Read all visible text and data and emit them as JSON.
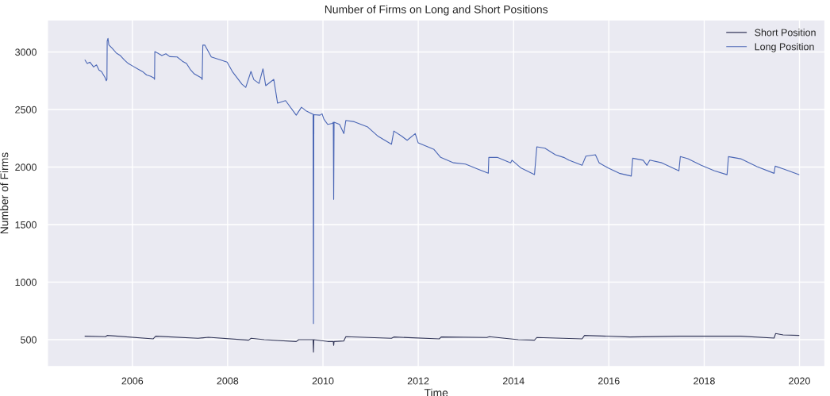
{
  "chart_data": {
    "type": "line",
    "title": "Number of Firms on Long and Short Positions",
    "xlabel": "Time",
    "ylabel": "Number of Firms",
    "xlim": [
      "2004-03-20",
      "2020-07-15"
    ],
    "xticks": [
      "2006",
      "2008",
      "2010",
      "2012",
      "2014",
      "2016",
      "2018",
      "2020"
    ],
    "ylim": [
      265,
      3280
    ],
    "yticks": [
      500,
      1000,
      1500,
      2000,
      2500,
      3000
    ],
    "grid": true,
    "legend": "top right",
    "series": [
      {
        "name": "Short Position",
        "color": "#34385a",
        "x": [
          "2005-01-03",
          "2005-06-10",
          "2005-06-22",
          "2006-06-10",
          "2006-06-29",
          "2007-05-19",
          "2007-08-07",
          "2008-06-10",
          "2008-06-29",
          "2008-10-08",
          "2009-06-10",
          "2009-06-29",
          "2009-10-17",
          "2009-10-20",
          "2009-10-23",
          "2010-02-06",
          "2010-03-21",
          "2010-03-24",
          "2010-03-27",
          "2010-06-10",
          "2010-06-25",
          "2011-06-10",
          "2011-06-28",
          "2012-06-10",
          "2012-06-25",
          "2013-06-10",
          "2013-06-29",
          "2014-02-06",
          "2014-06-10",
          "2014-06-28",
          "2015-06-10",
          "2015-06-29",
          "2016-06-10",
          "2017-06-29",
          "2018-10-08",
          "2019-06-21",
          "2019-07-02",
          "2019-08-29",
          "2019-12-28"
        ],
        "values": [
          530,
          526,
          537,
          507,
          530,
          512,
          521,
          496,
          512,
          500,
          484,
          500,
          500,
          392,
          500,
          484,
          484,
          450,
          484,
          489,
          526,
          512,
          523,
          507,
          523,
          519,
          526,
          500,
          496,
          519,
          507,
          537,
          523,
          530,
          530,
          514,
          553,
          541,
          537
        ]
      },
      {
        "name": "Long Position",
        "color": "#4a66b5",
        "x": [
          "2005-01-03",
          "2005-01-20",
          "2005-02-10",
          "2005-03-10",
          "2005-04-01",
          "2005-04-20",
          "2005-05-10",
          "2005-05-25",
          "2005-06-05",
          "2005-06-15",
          "2005-06-20",
          "2005-06-22",
          "2005-06-28",
          "2005-07-05",
          "2005-08-01",
          "2005-09-01",
          "2005-10-01",
          "2005-11-01",
          "2005-12-01",
          "2006-01-05",
          "2006-02-15",
          "2006-03-20",
          "2006-04-20",
          "2006-05-20",
          "2006-06-15",
          "2006-06-20",
          "2006-06-22",
          "2006-07-15",
          "2006-08-15",
          "2006-09-15",
          "2006-10-15",
          "2006-12-10",
          "2007-01-20",
          "2007-02-20",
          "2007-03-20",
          "2007-04-20",
          "2007-06-15",
          "2007-06-20",
          "2007-06-25",
          "2007-07-10",
          "2007-08-29",
          "2007-10-15",
          "2007-12-28",
          "2008-02-06",
          "2008-04-20",
          "2008-05-19",
          "2008-06-28",
          "2008-07-20",
          "2008-08-29",
          "2008-09-28",
          "2008-10-19",
          "2008-12-20",
          "2009-01-18",
          "2009-03-20",
          "2009-06-10",
          "2009-07-20",
          "2009-08-28",
          "2009-10-10",
          "2009-10-17",
          "2009-10-20",
          "2009-10-23",
          "2009-12-09",
          "2009-12-25",
          "2010-01-08",
          "2010-02-06",
          "2010-03-15",
          "2010-03-21",
          "2010-03-24",
          "2010-03-27",
          "2010-05-08",
          "2010-06-10",
          "2010-06-25",
          "2010-08-29",
          "2010-12-10",
          "2011-02-28",
          "2011-06-10",
          "2011-06-28",
          "2011-08-29",
          "2011-10-08",
          "2011-12-09",
          "2012-01-01",
          "2012-05-01",
          "2012-06-21",
          "2012-09-28",
          "2012-12-28",
          "2013-04-08",
          "2013-06-21",
          "2013-06-25",
          "2013-08-29",
          "2013-12-09",
          "2013-12-20",
          "2014-02-28",
          "2014-06-10",
          "2014-06-28",
          "2014-08-29",
          "2014-11-17",
          "2015-01-20",
          "2015-02-28",
          "2015-06-10",
          "2015-07-09",
          "2015-09-20",
          "2015-10-19",
          "2015-12-28",
          "2016-03-21",
          "2016-06-21",
          "2016-07-02",
          "2016-09-20",
          "2016-10-19",
          "2016-11-10",
          "2017-02-10",
          "2017-06-21",
          "2017-07-02",
          "2017-08-29",
          "2017-12-09",
          "2018-03-21",
          "2018-06-25",
          "2018-07-06",
          "2018-10-08",
          "2019-02-10",
          "2019-06-21",
          "2019-06-29",
          "2019-08-29",
          "2019-12-28"
        ],
        "values": [
          2930,
          2900,
          2912,
          2870,
          2888,
          2843,
          2830,
          2800,
          2780,
          2750,
          2762,
          3095,
          3119,
          3061,
          3030,
          2990,
          2969,
          2930,
          2900,
          2877,
          2850,
          2830,
          2800,
          2790,
          2774,
          2762,
          3003,
          2990,
          2970,
          2985,
          2960,
          2957,
          2920,
          2900,
          2850,
          2810,
          2774,
          2760,
          3061,
          3060,
          2957,
          2940,
          2912,
          2831,
          2720,
          2693,
          2831,
          2760,
          2727,
          2854,
          2707,
          2762,
          2555,
          2578,
          2451,
          2520,
          2486,
          2463,
          2460,
          640,
          2455,
          2451,
          2463,
          2417,
          2371,
          2380,
          2390,
          1720,
          2390,
          2371,
          2291,
          2405,
          2394,
          2348,
          2267,
          2198,
          2313,
          2267,
          2233,
          2291,
          2210,
          2153,
          2084,
          2037,
          2026,
          1980,
          1946,
          2084,
          2084,
          2037,
          2060,
          1991,
          1934,
          2176,
          2164,
          2107,
          2084,
          2060,
          2015,
          2095,
          2107,
          2037,
          1991,
          1946,
          1922,
          2077,
          2060,
          2015,
          2060,
          2037,
          1968,
          2091,
          2072,
          2015,
          1968,
          1934,
          2091,
          2072,
          2003,
          1946,
          2008,
          1984,
          1934
        ]
      }
    ]
  }
}
